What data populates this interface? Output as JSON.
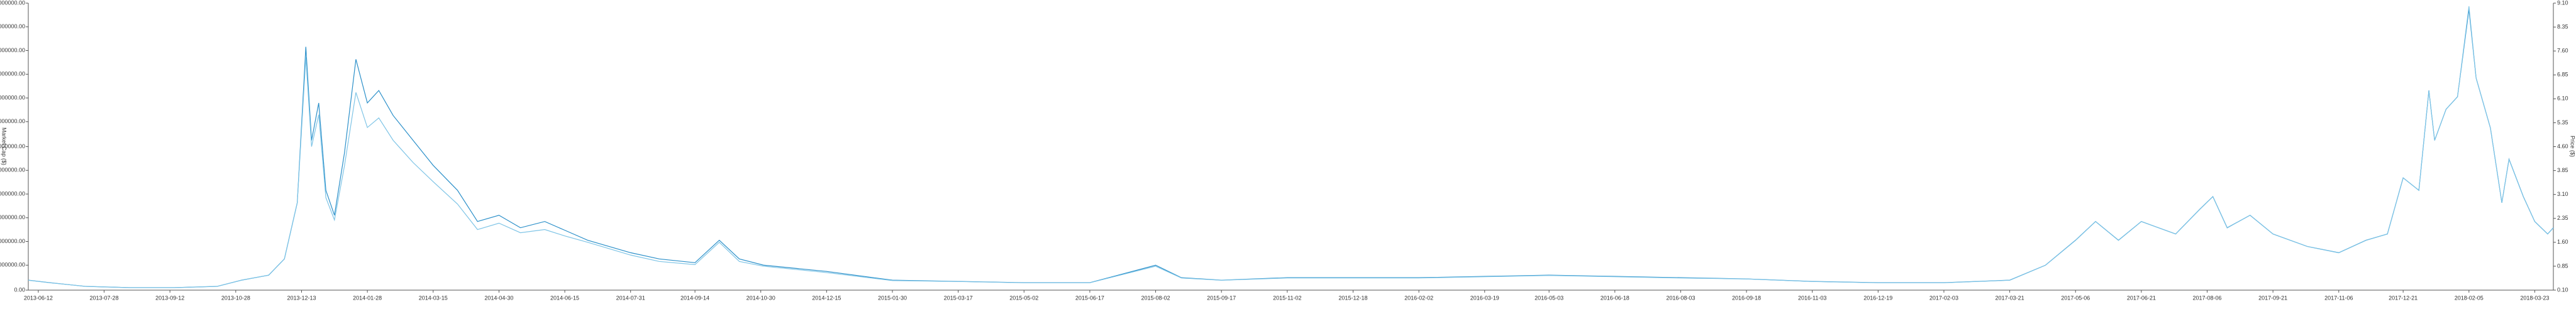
{
  "chart_data": {
    "type": "line",
    "y_label": "Market Cap ($)",
    "y2_label": "Price ($)",
    "x": [
      "2013-06-05",
      "2013-06-20",
      "2013-07-15",
      "2013-08-15",
      "2013-09-15",
      "2013-10-15",
      "2013-11-01",
      "2013-11-20",
      "2013-12-01",
      "2013-12-10",
      "2013-12-16",
      "2013-12-20",
      "2013-12-25",
      "2013-12-30",
      "2014-01-05",
      "2014-01-12",
      "2014-01-20",
      "2014-01-28",
      "2014-02-05",
      "2014-02-15",
      "2014-03-01",
      "2014-03-15",
      "2014-04-01",
      "2014-04-15",
      "2014-04-30",
      "2014-05-15",
      "2014-06-01",
      "2014-06-15",
      "2014-07-01",
      "2014-07-31",
      "2014-08-20",
      "2014-09-14",
      "2014-10-01",
      "2014-10-15",
      "2014-11-01",
      "2014-12-15",
      "2015-01-30",
      "2015-03-17",
      "2015-05-02",
      "2015-06-17",
      "2015-08-02",
      "2015-08-20",
      "2015-09-17",
      "2015-11-02",
      "2015-12-18",
      "2016-02-02",
      "2016-03-19",
      "2016-05-03",
      "2016-06-18",
      "2016-08-03",
      "2016-09-18",
      "2016-11-03",
      "2016-12-19",
      "2017-02-03",
      "2017-03-21",
      "2017-04-15",
      "2017-05-06",
      "2017-05-20",
      "2017-06-05",
      "2017-06-21",
      "2017-07-15",
      "2017-08-01",
      "2017-08-10",
      "2017-08-20",
      "2017-09-05",
      "2017-09-21",
      "2017-10-15",
      "2017-11-06",
      "2017-11-25",
      "2017-12-10",
      "2017-12-21",
      "2018-01-01",
      "2018-01-08",
      "2018-01-12",
      "2018-01-20",
      "2018-01-28",
      "2018-02-05",
      "2018-02-10",
      "2018-02-20",
      "2018-02-28",
      "2018-03-05",
      "2018-03-15",
      "2018-03-23",
      "2018-04-01",
      "2018-04-05"
    ],
    "series": [
      {
        "color": "#2a8fc9",
        "values": [
          8000000,
          6000000,
          3000000,
          2000000,
          2000000,
          3000000,
          8000000,
          12000000,
          25000000,
          70000000,
          195000000,
          120000000,
          150000000,
          80000000,
          60000000,
          110000000,
          185000000,
          150000000,
          160000000,
          140000000,
          120000000,
          100000000,
          80000000,
          55000000,
          60000000,
          50000000,
          55000000,
          48000000,
          40000000,
          30000000,
          25000000,
          22000000,
          40000000,
          25000000,
          20000000,
          15000000,
          8000000,
          7000000,
          6000000,
          6000000,
          20000000,
          10000000,
          8000000,
          10000000,
          10000000,
          10000000,
          11000000,
          12000000,
          11000000,
          10000000,
          9000000,
          7000000,
          6000000,
          6000000,
          8000000,
          20000000,
          40000000,
          55000000,
          40000000,
          55000000,
          45000000,
          65000000,
          75000000,
          50000000,
          60000000,
          45000000,
          35000000,
          30000000,
          40000000,
          45000000,
          90000000,
          80000000,
          160000000,
          120000000,
          145000000,
          155000000,
          225000000,
          170000000,
          130000000,
          70000000,
          105000000,
          75000000,
          55000000,
          45000000,
          50000000
        ]
      },
      {
        "color": "#7ec4e6",
        "axis": "y2",
        "values": [
          0.41,
          0.33,
          0.22,
          0.18,
          0.18,
          0.22,
          0.41,
          0.57,
          1.08,
          2.84,
          7.4,
          4.6,
          5.6,
          3.0,
          2.3,
          4.0,
          6.3,
          5.2,
          5.5,
          4.8,
          4.1,
          3.5,
          2.8,
          2.0,
          2.2,
          1.9,
          2.0,
          1.8,
          1.6,
          1.2,
          1.0,
          0.9,
          1.6,
          1.0,
          0.85,
          0.65,
          0.4,
          0.37,
          0.33,
          0.33,
          0.85,
          0.48,
          0.41,
          0.48,
          0.48,
          0.48,
          0.52,
          0.56,
          0.52,
          0.48,
          0.45,
          0.37,
          0.33,
          0.33,
          0.41,
          0.88,
          1.66,
          2.25,
          1.66,
          2.25,
          1.86,
          2.64,
          3.03,
          2.05,
          2.45,
          1.86,
          1.47,
          1.27,
          1.66,
          1.86,
          3.62,
          3.23,
          6.35,
          4.8,
          5.77,
          6.16,
          9.0,
          6.75,
          5.18,
          2.84,
          4.2,
          3.03,
          2.25,
          1.86,
          2.05
        ]
      }
    ],
    "xlim": [
      "2013-06-05",
      "2018-04-05"
    ],
    "xticks": [
      "2013-06-12",
      "2013-07-28",
      "2013-09-12",
      "2013-10-28",
      "2013-12-13",
      "2014-01-28",
      "2014-03-15",
      "2014-04-30",
      "2014-06-15",
      "2014-07-31",
      "2014-09-14",
      "2014-10-30",
      "2014-12-15",
      "2015-01-30",
      "2015-03-17",
      "2015-05-02",
      "2015-06-17",
      "2015-08-02",
      "2015-09-17",
      "2015-11-02",
      "2015-12-18",
      "2016-02-02",
      "2016-03-19",
      "2016-05-03",
      "2016-06-18",
      "2016-08-03",
      "2016-09-18",
      "2016-11-03",
      "2016-12-19",
      "2017-02-03",
      "2017-03-21",
      "2017-05-06",
      "2017-06-21",
      "2017-08-06",
      "2017-09-21",
      "2017-11-06",
      "2017-12-21",
      "2018-02-05",
      "2018-03-23"
    ],
    "ylim": [
      0,
      230000000
    ],
    "yticks": [
      {
        "value": 0,
        "label": "0.00"
      },
      {
        "value": 20000000,
        "label": "20000000.00"
      },
      {
        "value": 39000000,
        "label": "39000000.00"
      },
      {
        "value": 58000000,
        "label": "58000000.00"
      },
      {
        "value": 77000000,
        "label": "77000000.00"
      },
      {
        "value": 96000000,
        "label": "96000000.00"
      },
      {
        "value": 115000000,
        "label": "115000000.00"
      },
      {
        "value": 135000000,
        "label": "135000000.00"
      },
      {
        "value": 154000000,
        "label": "154000000.00"
      },
      {
        "value": 173000000,
        "label": "173000000.00"
      },
      {
        "value": 192000000,
        "label": "192000000.00"
      },
      {
        "value": 211000000,
        "label": "211000000.00"
      },
      {
        "value": 230000000,
        "label": "230000000.00"
      }
    ],
    "y2lim": [
      0.1,
      9.1
    ],
    "y2ticks": [
      {
        "value": 0.1,
        "label": "0.10"
      },
      {
        "value": 0.85,
        "label": "0.85"
      },
      {
        "value": 1.6,
        "label": "1.60"
      },
      {
        "value": 2.35,
        "label": "2.35"
      },
      {
        "value": 3.1,
        "label": "3.10"
      },
      {
        "value": 3.85,
        "label": "3.85"
      },
      {
        "value": 4.6,
        "label": "4.60"
      },
      {
        "value": 5.35,
        "label": "5.35"
      },
      {
        "value": 6.1,
        "label": "6.10"
      },
      {
        "value": 6.85,
        "label": "6.85"
      },
      {
        "value": 7.6,
        "label": "7.60"
      },
      {
        "value": 8.35,
        "label": "8.35"
      },
      {
        "value": 9.1,
        "label": "9.10"
      }
    ]
  }
}
